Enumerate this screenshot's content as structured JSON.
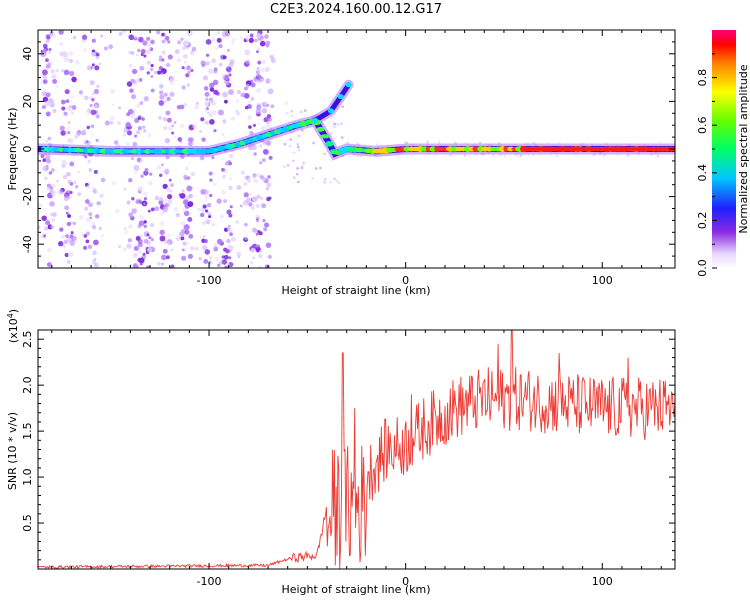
{
  "title": "C2E3.2024.160.00.12.G17",
  "colors": {
    "snr_line": "#ee3a33",
    "spec_low": "#8a2be2",
    "spec_high": "#ff0000"
  },
  "chart_data": [
    {
      "type": "heatmap",
      "xlabel": "Height of straight line (km)",
      "ylabel": "Frequency (Hz)",
      "xlim": [
        -187,
        137
      ],
      "ylim": [
        -50,
        50
      ],
      "xticks": [
        -100,
        0,
        100
      ],
      "yticks": [
        -40,
        -20,
        0,
        20,
        40
      ],
      "grid": false,
      "colorbar": {
        "label": "Normalized spectral amplitude",
        "range": [
          0,
          1
        ],
        "ticks": [
          "0.0",
          "0.2",
          "0.4",
          "0.6",
          "0.8"
        ],
        "colormap": "rainbow"
      },
      "ridge": [
        {
          "x": -185,
          "f": 0
        },
        {
          "x": -150,
          "f": -1
        },
        {
          "x": -120,
          "f": -1
        },
        {
          "x": -100,
          "f": -1
        },
        {
          "x": -85,
          "f": 2
        },
        {
          "x": -70,
          "f": 6
        },
        {
          "x": -55,
          "f": 10
        },
        {
          "x": -46,
          "f": 12
        },
        {
          "x": -40,
          "f": 4
        },
        {
          "x": -36,
          "f": -2
        },
        {
          "x": -30,
          "f": 0
        },
        {
          "x": -15,
          "f": -1
        },
        {
          "x": 0,
          "f": 0
        },
        {
          "x": 40,
          "f": 0
        },
        {
          "x": 137,
          "f": 0
        }
      ],
      "branch": [
        {
          "x": -46,
          "f": 12
        },
        {
          "x": -38,
          "f": 16
        },
        {
          "x": -33,
          "f": 22
        },
        {
          "x": -29,
          "f": 27
        }
      ]
    },
    {
      "type": "line",
      "xlabel": "Height of straight line (km)",
      "ylabel": "SNR (10 * v/v)",
      "yscale_label": "(x10",
      "yscale_exp": "4",
      "yscale_close": ")",
      "xlim": [
        -187,
        137
      ],
      "ylim": [
        0,
        2.6
      ],
      "xticks": [
        -100,
        0,
        100
      ],
      "yticks": [
        "0.5",
        "1.0",
        "1.5",
        "2.0",
        "2.5"
      ],
      "grid": false,
      "series": [
        {
          "color": "#ee3a33",
          "envelope": [
            {
              "x": -187,
              "y": 0.02
            },
            {
              "x": -70,
              "y": 0.04
            },
            {
              "x": -58,
              "y": 0.12
            },
            {
              "x": -45,
              "y": 0.15
            },
            {
              "x": -38,
              "y": 0.9
            },
            {
              "x": -30,
              "y": 0.95
            },
            {
              "x": -20,
              "y": 1.0
            },
            {
              "x": -10,
              "y": 1.3
            },
            {
              "x": 0,
              "y": 1.35
            },
            {
              "x": 10,
              "y": 1.55
            },
            {
              "x": 25,
              "y": 1.75
            },
            {
              "x": 40,
              "y": 1.85
            },
            {
              "x": 60,
              "y": 1.85
            },
            {
              "x": 80,
              "y": 1.8
            },
            {
              "x": 100,
              "y": 1.75
            },
            {
              "x": 120,
              "y": 1.75
            },
            {
              "x": 137,
              "y": 1.75
            }
          ],
          "spikes": [
            {
              "x": -32,
              "y": 2.35
            },
            {
              "x": -26,
              "y": 1.75
            },
            {
              "x": 3,
              "y": 1.9
            },
            {
              "x": 47,
              "y": 2.45
            },
            {
              "x": 54,
              "y": 2.6
            },
            {
              "x": 78,
              "y": 2.35
            },
            {
              "x": 113,
              "y": 2.3
            }
          ]
        }
      ]
    }
  ]
}
